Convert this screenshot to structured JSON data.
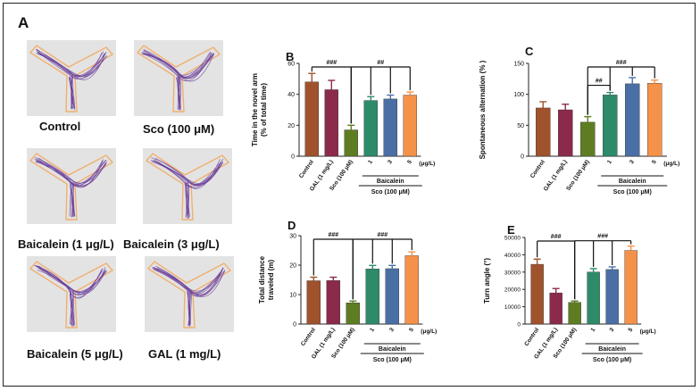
{
  "panel_a": {
    "letter": "A",
    "mazes": [
      {
        "label": "Control"
      },
      {
        "label": "Sco (100 μM)"
      },
      {
        "label": "Baicalein (1 μg/L)"
      },
      {
        "label": "Baicalein (3 μg/L)"
      },
      {
        "label": "Baicalein (5 μg/L)"
      },
      {
        "label": "GAL (1 mg/L)"
      }
    ]
  },
  "colors": {
    "control": "#a0522d",
    "gal": "#8b2a4a",
    "sco": "#5e7d22",
    "baicalein_1": "#2e8b6a",
    "baicalein_3": "#4a6fa5",
    "baicalein_5": "#f5924a",
    "trace": "#6a3d9a",
    "maze_outline": "#f0b070"
  },
  "chart_data": [
    {
      "panel": "B",
      "type": "bar",
      "ylabel": "Time in the novel arm",
      "ylabel2": "(% of total time)",
      "ylim": [
        0,
        60
      ],
      "yticks": [
        0,
        20,
        40,
        60
      ],
      "categories": [
        "Control",
        "GAL (1 mg/L)",
        "Sco (100 μM)",
        "1",
        "3",
        "5"
      ],
      "unit": "(μg/L)",
      "group_label": "Baicalein",
      "group_sub": "Sco (100 μM)",
      "values": [
        48,
        43,
        17,
        36,
        37,
        39.5
      ],
      "errors": [
        5.5,
        6,
        3,
        2.5,
        2.5,
        2
      ],
      "annotations": [
        {
          "text": "###",
          "from": 0,
          "to": 2
        },
        {
          "text": "##",
          "from": 2,
          "to": 5
        }
      ]
    },
    {
      "panel": "C",
      "type": "bar",
      "ylabel": "Spontaneous alternation (% )",
      "ylim": [
        0,
        150
      ],
      "yticks": [
        0,
        50,
        100,
        150
      ],
      "categories": [
        "Control",
        "GAL (1 mg/L)",
        "Sco (100 μM)",
        "1",
        "3",
        "5"
      ],
      "unit": "(μg/L)",
      "group_label": "Baicalein",
      "group_sub": "Sco (100 μM)",
      "values": [
        78,
        75,
        55,
        99,
        117,
        118
      ],
      "errors": [
        10,
        9,
        9,
        4,
        10,
        5
      ],
      "annotations": [
        {
          "text": "##",
          "from": 2,
          "to": 3
        },
        {
          "text": "###",
          "from": 2,
          "to": 5
        }
      ]
    },
    {
      "panel": "D",
      "type": "bar",
      "ylabel": "Total distance",
      "ylabel2": "traveled (m)",
      "ylim": [
        0,
        30
      ],
      "yticks": [
        0,
        10,
        20,
        30
      ],
      "categories": [
        "Control",
        "GAL (1 mg/L)",
        "Sco (100 μM)",
        "1",
        "3",
        "5"
      ],
      "unit": "(μg/L)",
      "group_label": "Baicalein",
      "group_sub": "Sco (100 μM)",
      "values": [
        14.7,
        14.8,
        7.2,
        18.7,
        18.8,
        23.2
      ],
      "errors": [
        1.2,
        1.1,
        0.6,
        1.2,
        1.1,
        1.3
      ],
      "annotations": [
        {
          "text": "###",
          "from": 0,
          "to": 2
        },
        {
          "text": "###",
          "from": 2,
          "to": 5
        }
      ]
    },
    {
      "panel": "E",
      "type": "bar",
      "ylabel": "Turn angle (°)",
      "ylim": [
        0,
        50000
      ],
      "yticks": [
        0,
        10000,
        20000,
        30000,
        40000,
        50000
      ],
      "categories": [
        "Control",
        "GAL (1 mg/L)",
        "Sco (100 μM)",
        "1",
        "3",
        "5"
      ],
      "unit": "(μg/L)",
      "group_label": "Baicalein",
      "group_sub": "Sco (100 μM)",
      "values": [
        34500,
        18000,
        12500,
        30000,
        31500,
        42500
      ],
      "errors": [
        3000,
        2500,
        800,
        2000,
        1500,
        2500
      ],
      "annotations": [
        {
          "text": "###",
          "from": 0,
          "to": 2
        },
        {
          "text": "###",
          "from": 2,
          "to": 5
        }
      ]
    }
  ]
}
